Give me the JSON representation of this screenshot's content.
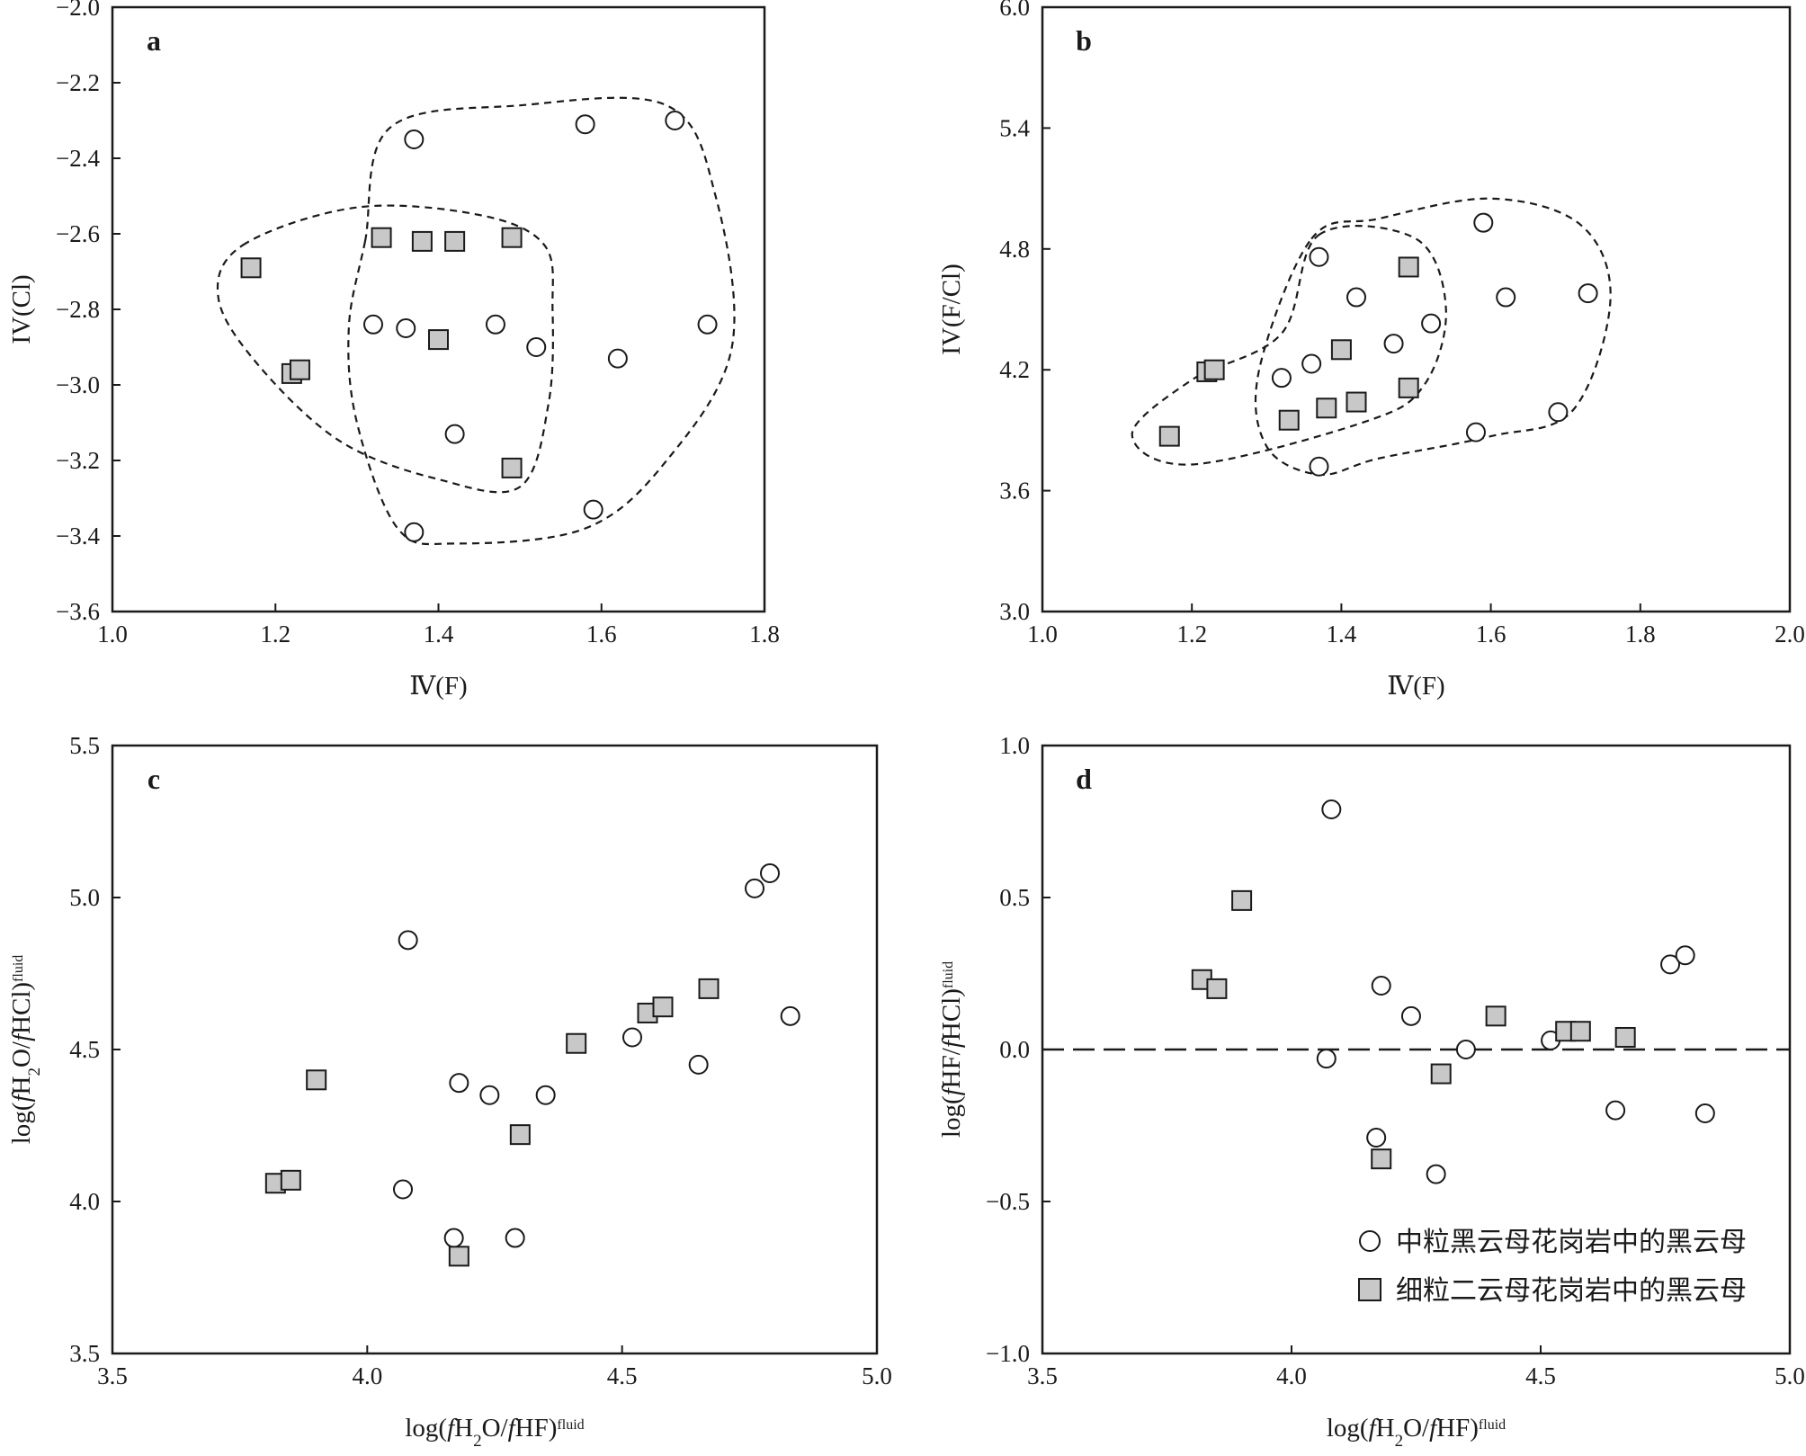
{
  "colors": {
    "axis": "#1a1a1a",
    "circle_fill": "#ffffff",
    "square_fill": "#c8c8c8"
  },
  "legend": {
    "circle_label": "中粒黑云母花岗岩中的黑云母",
    "square_label": "细粒二云母花岗岩中的黑云母"
  },
  "chart_data": [
    {
      "id": "a",
      "type": "scatter",
      "panel_label": "a",
      "xlim": [
        1.0,
        1.8
      ],
      "ylim": [
        -3.6,
        -2.0
      ],
      "xticks": [
        "1.0",
        "1.2",
        "1.4",
        "1.6",
        "1.8"
      ],
      "yticks": [
        "−3.6",
        "−3.4",
        "−3.2",
        "−3.0",
        "−2.8",
        "−2.6",
        "−2.4",
        "−2.2",
        "−2.0"
      ],
      "xlabel": "Ⅳ(F)",
      "ylabel": "IV(Cl)",
      "series": [
        {
          "marker": "circle",
          "points": [
            [
              1.37,
              -2.35
            ],
            [
              1.58,
              -2.31
            ],
            [
              1.69,
              -2.3
            ],
            [
              1.32,
              -2.84
            ],
            [
              1.36,
              -2.85
            ],
            [
              1.47,
              -2.84
            ],
            [
              1.52,
              -2.9
            ],
            [
              1.62,
              -2.93
            ],
            [
              1.73,
              -2.84
            ],
            [
              1.42,
              -3.13
            ],
            [
              1.59,
              -3.33
            ],
            [
              1.37,
              -3.39
            ]
          ]
        },
        {
          "marker": "square",
          "points": [
            [
              1.17,
              -2.69
            ],
            [
              1.33,
              -2.61
            ],
            [
              1.38,
              -2.62
            ],
            [
              1.42,
              -2.62
            ],
            [
              1.49,
              -2.61
            ],
            [
              1.22,
              -2.97
            ],
            [
              1.23,
              -2.96
            ],
            [
              1.4,
              -2.88
            ],
            [
              1.49,
              -3.22
            ]
          ]
        }
      ],
      "envelopes": [
        [
          [
            1.16,
            -2.63
          ],
          [
            1.3,
            -2.53
          ],
          [
            1.45,
            -2.55
          ],
          [
            1.53,
            -2.63
          ],
          [
            1.54,
            -2.8
          ],
          [
            1.535,
            -3.05
          ],
          [
            1.5,
            -3.27
          ],
          [
            1.4,
            -3.25
          ],
          [
            1.28,
            -3.15
          ],
          [
            1.18,
            -2.95
          ],
          [
            1.13,
            -2.77
          ]
        ],
        [
          [
            1.31,
            -2.62
          ],
          [
            1.34,
            -2.32
          ],
          [
            1.5,
            -2.26
          ],
          [
            1.68,
            -2.26
          ],
          [
            1.74,
            -2.5
          ],
          [
            1.76,
            -2.9
          ],
          [
            1.68,
            -3.2
          ],
          [
            1.58,
            -3.38
          ],
          [
            1.42,
            -3.42
          ],
          [
            1.35,
            -3.38
          ],
          [
            1.3,
            -3.1
          ],
          [
            1.29,
            -2.85
          ]
        ]
      ]
    },
    {
      "id": "b",
      "type": "scatter",
      "panel_label": "b",
      "xlim": [
        1.0,
        2.0
      ],
      "ylim": [
        3.0,
        6.0
      ],
      "xticks": [
        "1.0",
        "1.2",
        "1.4",
        "1.6",
        "1.8",
        "2.0"
      ],
      "yticks": [
        "3.0",
        "3.6",
        "4.2",
        "4.8",
        "5.4",
        "6.0"
      ],
      "xlabel": "Ⅳ(F)",
      "ylabel": "IV(F/Cl)",
      "series": [
        {
          "marker": "circle",
          "points": [
            [
              1.37,
              4.76
            ],
            [
              1.59,
              4.93
            ],
            [
              1.42,
              4.56
            ],
            [
              1.62,
              4.56
            ],
            [
              1.73,
              4.58
            ],
            [
              1.52,
              4.43
            ],
            [
              1.47,
              4.33
            ],
            [
              1.36,
              4.23
            ],
            [
              1.32,
              4.16
            ],
            [
              1.69,
              3.99
            ],
            [
              1.58,
              3.89
            ],
            [
              1.37,
              3.72
            ]
          ]
        },
        {
          "marker": "square",
          "points": [
            [
              1.49,
              4.71
            ],
            [
              1.4,
              4.3
            ],
            [
              1.22,
              4.19
            ],
            [
              1.23,
              4.2
            ],
            [
              1.49,
              4.11
            ],
            [
              1.42,
              4.04
            ],
            [
              1.38,
              4.01
            ],
            [
              1.33,
              3.95
            ],
            [
              1.17,
              3.87
            ]
          ]
        }
      ],
      "envelopes": [
        [
          [
            1.37,
            4.87
          ],
          [
            1.5,
            4.85
          ],
          [
            1.54,
            4.5
          ],
          [
            1.51,
            4.12
          ],
          [
            1.43,
            3.94
          ],
          [
            1.2,
            3.73
          ],
          [
            1.12,
            3.88
          ],
          [
            1.2,
            4.15
          ],
          [
            1.32,
            4.38
          ]
        ],
        [
          [
            1.36,
            4.85
          ],
          [
            1.45,
            4.95
          ],
          [
            1.6,
            5.05
          ],
          [
            1.72,
            4.92
          ],
          [
            1.76,
            4.55
          ],
          [
            1.71,
            4.0
          ],
          [
            1.6,
            3.87
          ],
          [
            1.45,
            3.76
          ],
          [
            1.37,
            3.68
          ],
          [
            1.3,
            3.82
          ],
          [
            1.29,
            4.2
          ]
        ]
      ]
    },
    {
      "id": "c",
      "type": "scatter",
      "panel_label": "c",
      "xlim": [
        3.5,
        5.0
      ],
      "ylim": [
        3.5,
        5.5
      ],
      "xticks": [
        "3.5",
        "4.0",
        "4.5",
        "5.0"
      ],
      "yticks": [
        "3.5",
        "4.0",
        "4.5",
        "5.0",
        "5.5"
      ],
      "xlabel": "log(fH2O/fHF)fluid",
      "ylabel": "log(fH2O/fHCl)fluid",
      "series": [
        {
          "marker": "circle",
          "points": [
            [
              4.08,
              4.86
            ],
            [
              4.76,
              5.03
            ],
            [
              4.79,
              5.08
            ],
            [
              4.83,
              4.61
            ],
            [
              4.52,
              4.54
            ],
            [
              4.65,
              4.45
            ],
            [
              4.18,
              4.39
            ],
            [
              4.24,
              4.35
            ],
            [
              4.35,
              4.35
            ],
            [
              4.07,
              4.04
            ],
            [
              4.17,
              3.88
            ],
            [
              4.29,
              3.88
            ]
          ]
        },
        {
          "marker": "square",
          "points": [
            [
              3.9,
              4.4
            ],
            [
              3.82,
              4.06
            ],
            [
              3.85,
              4.07
            ],
            [
              4.41,
              4.52
            ],
            [
              4.55,
              4.62
            ],
            [
              4.58,
              4.64
            ],
            [
              4.67,
              4.7
            ],
            [
              4.3,
              4.22
            ],
            [
              4.18,
              3.82
            ]
          ]
        }
      ],
      "envelopes": []
    },
    {
      "id": "d",
      "type": "scatter",
      "panel_label": "d",
      "xlim": [
        3.5,
        5.0
      ],
      "ylim": [
        -1.0,
        1.0
      ],
      "xticks": [
        "3.5",
        "4.0",
        "4.5",
        "5.0"
      ],
      "yticks": [
        "−1.0",
        "−0.5",
        "0.0",
        "0.5",
        "1.0"
      ],
      "xlabel": "log(fH2O/fHF)fluid",
      "ylabel": "log(fHF/fHCl)fluid",
      "reference_line": {
        "y": 0.0,
        "style": "dashed"
      },
      "series": [
        {
          "marker": "circle",
          "points": [
            [
              4.08,
              0.79
            ],
            [
              4.18,
              0.21
            ],
            [
              4.24,
              0.11
            ],
            [
              4.35,
              0.0
            ],
            [
              4.07,
              -0.03
            ],
            [
              4.52,
              0.03
            ],
            [
              4.76,
              0.28
            ],
            [
              4.79,
              0.31
            ],
            [
              4.17,
              -0.29
            ],
            [
              4.29,
              -0.41
            ],
            [
              4.65,
              -0.2
            ],
            [
              4.83,
              -0.21
            ]
          ]
        },
        {
          "marker": "square",
          "points": [
            [
              3.82,
              0.23
            ],
            [
              3.85,
              0.2
            ],
            [
              3.9,
              0.49
            ],
            [
              4.41,
              0.11
            ],
            [
              4.55,
              0.06
            ],
            [
              4.58,
              0.06
            ],
            [
              4.67,
              0.04
            ],
            [
              4.3,
              -0.08
            ],
            [
              4.18,
              -0.36
            ]
          ]
        }
      ],
      "envelopes": []
    }
  ]
}
